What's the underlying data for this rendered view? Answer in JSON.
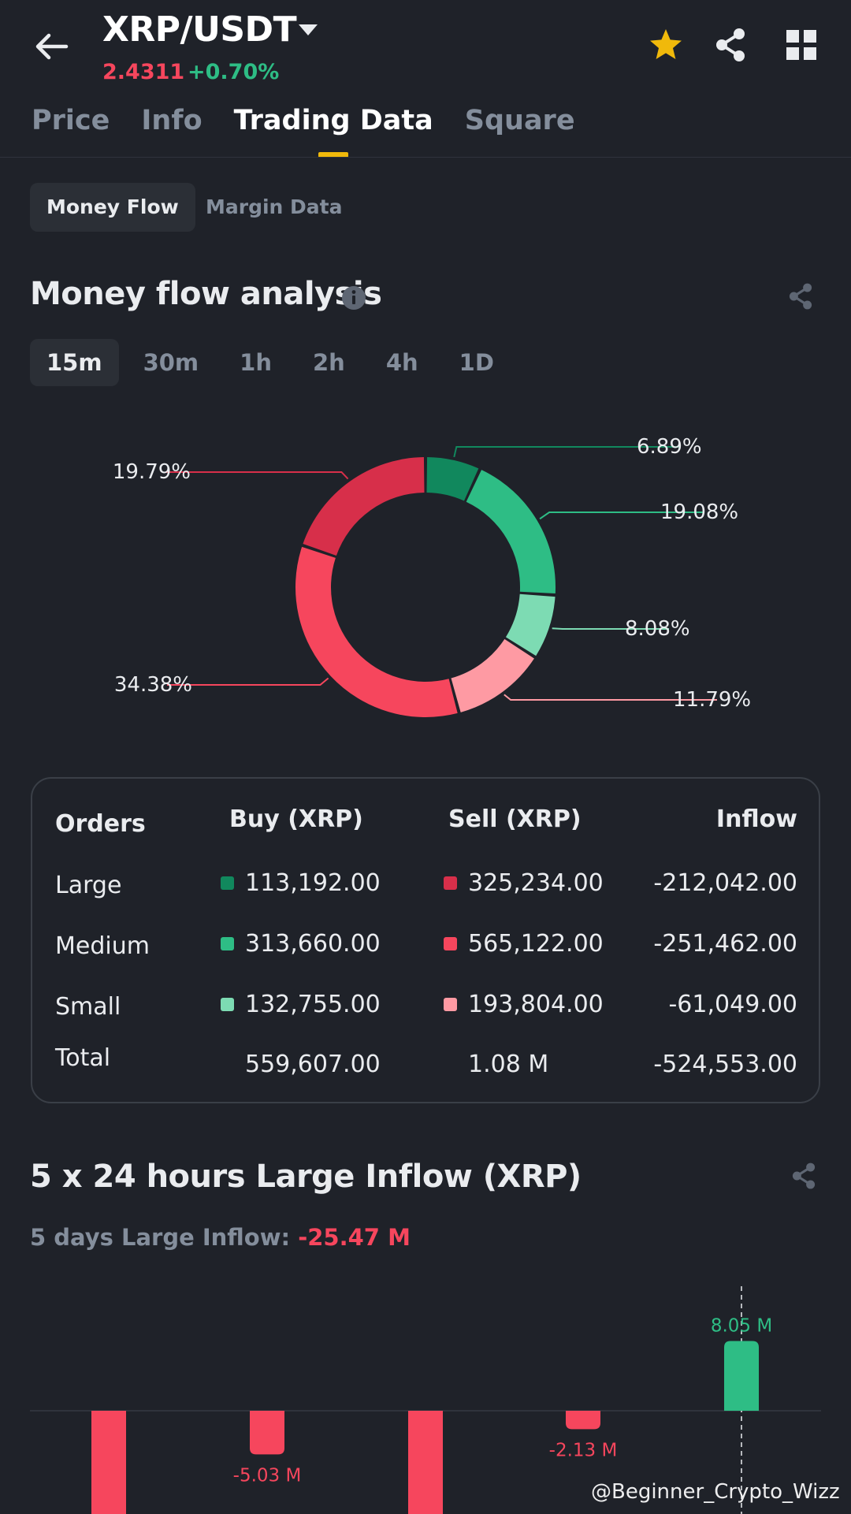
{
  "header": {
    "pair": "XRP/USDT",
    "price": "2.4311",
    "change": "+0.70%",
    "tabs": [
      "Price",
      "Info",
      "Trading Data",
      "Square"
    ],
    "active_tab": "Trading Data"
  },
  "subtabs": {
    "money_flow": "Money Flow",
    "margin_data": "Margin Data"
  },
  "money_flow": {
    "title": "Money flow analysis",
    "time_tabs": [
      "15m",
      "30m",
      "1h",
      "2h",
      "4h",
      "1D"
    ],
    "active_time": "15m"
  },
  "chart_data": [
    {
      "type": "pie",
      "title": "",
      "slices": [
        {
          "label": "6.89%",
          "value": 6.89,
          "color": "#11885d"
        },
        {
          "label": "19.08%",
          "value": 19.08,
          "color": "#2ebd85"
        },
        {
          "label": "8.08%",
          "value": 8.08,
          "color": "#7ddbb3"
        },
        {
          "label": "11.79%",
          "value": 11.79,
          "color": "#fe9aa3"
        },
        {
          "label": "34.38%",
          "value": 34.38,
          "color": "#f6465d"
        },
        {
          "label": "19.79%",
          "value": 19.79,
          "color": "#d72f4a"
        }
      ]
    },
    {
      "type": "bar",
      "title": "5 x 24 hours Large Inflow (XRP)",
      "values": [
        null,
        -5.03,
        null,
        -2.13,
        8.05
      ],
      "value_labels": [
        "",
        "-5.03 M",
        "",
        "-2.13 M",
        "8.05 M"
      ],
      "colors": {
        "negative": "#f6465d",
        "positive": "#2ebd85"
      }
    }
  ],
  "orders_table": {
    "headers": [
      "Orders",
      "Buy (XRP)",
      "Sell (XRP)",
      "Inflow"
    ],
    "rows": [
      {
        "label": "Large",
        "buy": "113,192.00",
        "sell": "325,234.00",
        "inflow": "-212,042.00",
        "buy_color": "#11885d",
        "sell_color": "#d72f4a"
      },
      {
        "label": "Medium",
        "buy": "313,660.00",
        "sell": "565,122.00",
        "inflow": "-251,462.00",
        "buy_color": "#2ebd85",
        "sell_color": "#f6465d"
      },
      {
        "label": "Small",
        "buy": "132,755.00",
        "sell": "193,804.00",
        "inflow": "-61,049.00",
        "buy_color": "#7ddbb3",
        "sell_color": "#fe9aa3"
      }
    ],
    "total": {
      "label": "Total",
      "buy": "559,607.00",
      "sell": "1.08 M",
      "inflow": "-524,553.00"
    }
  },
  "large_inflow": {
    "title": "5 x 24 hours Large Inflow (XRP)",
    "summary_label": "5 days Large Inflow:",
    "summary_value": "-25.47 M"
  },
  "watermark": "@Beginner_Crypto_Wizz"
}
